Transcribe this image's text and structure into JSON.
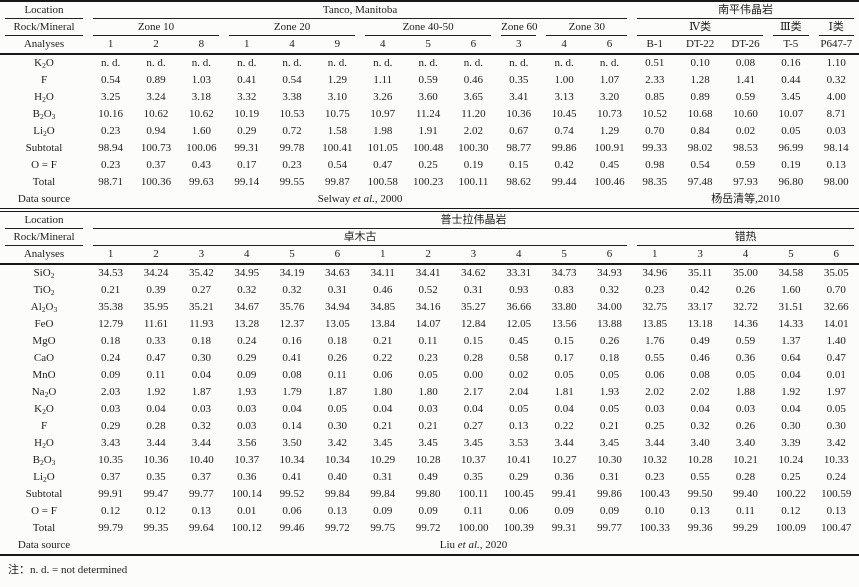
{
  "footnote": "注：n. d. = not determined",
  "tables": [
    {
      "header_labels": {
        "location": "Location",
        "rock_mineral": "Rock/Mineral",
        "analyses": "Analyses"
      },
      "locations": [
        {
          "label": "Tanco, Manitoba",
          "span": 12
        },
        {
          "label": "南平伟晶岩",
          "span": 5
        }
      ],
      "groups": [
        {
          "label": "Zone 10",
          "span": 3
        },
        {
          "label": "Zone 20",
          "span": 3
        },
        {
          "label": "Zone 40-50",
          "span": 3
        },
        {
          "label": "Zone 60",
          "span": 1
        },
        {
          "label": "Zone 30",
          "span": 2
        },
        {
          "label": "Ⅳ类",
          "span": 3
        },
        {
          "label": "Ⅲ类",
          "span": 1
        },
        {
          "label": "Ⅰ类",
          "span": 1
        }
      ],
      "analyses": [
        "1",
        "2",
        "8",
        "1",
        "4",
        "9",
        "4",
        "5",
        "6",
        "3",
        "4",
        "6",
        "B-1",
        "DT-22",
        "DT-26",
        "T-5",
        "P647-7"
      ],
      "rows": [
        {
          "label": "K2O",
          "values": [
            "n. d.",
            "n. d.",
            "n. d.",
            "n. d.",
            "n. d.",
            "n. d.",
            "n. d.",
            "n. d.",
            "n. d.",
            "n. d.",
            "n. d.",
            "n. d.",
            "0.51",
            "0.10",
            "0.08",
            "0.16",
            "1.10"
          ]
        },
        {
          "label": "F",
          "values": [
            "0.54",
            "0.89",
            "1.03",
            "0.41",
            "0.54",
            "1.29",
            "1.11",
            "0.59",
            "0.46",
            "0.35",
            "1.00",
            "1.07",
            "2.33",
            "1.28",
            "1.41",
            "0.44",
            "0.32"
          ]
        },
        {
          "label": "H2O",
          "values": [
            "3.25",
            "3.24",
            "3.18",
            "3.32",
            "3.38",
            "3.10",
            "3.26",
            "3.60",
            "3.65",
            "3.41",
            "3.13",
            "3.20",
            "0.85",
            "0.89",
            "0.59",
            "3.45",
            "4.00"
          ]
        },
        {
          "label": "B2O3",
          "values": [
            "10.16",
            "10.62",
            "10.62",
            "10.19",
            "10.53",
            "10.75",
            "10.97",
            "11.24",
            "11.20",
            "10.36",
            "10.45",
            "10.73",
            "10.52",
            "10.68",
            "10.60",
            "10.07",
            "8.71"
          ]
        },
        {
          "label": "Li2O",
          "values": [
            "0.23",
            "0.94",
            "1.60",
            "0.29",
            "0.72",
            "1.58",
            "1.98",
            "1.91",
            "2.02",
            "0.67",
            "0.74",
            "1.29",
            "0.70",
            "0.84",
            "0.02",
            "0.05",
            "0.03"
          ]
        },
        {
          "label": "Subtotal",
          "values": [
            "98.94",
            "100.73",
            "100.06",
            "99.31",
            "99.78",
            "100.41",
            "101.05",
            "100.48",
            "100.30",
            "98.77",
            "99.86",
            "100.91",
            "99.33",
            "98.02",
            "98.53",
            "96.99",
            "98.14"
          ]
        },
        {
          "label": "O = F",
          "values": [
            "0.23",
            "0.37",
            "0.43",
            "0.17",
            "0.23",
            "0.54",
            "0.47",
            "0.25",
            "0.19",
            "0.15",
            "0.42",
            "0.45",
            "0.98",
            "0.54",
            "0.59",
            "0.19",
            "0.13"
          ]
        },
        {
          "label": "Total",
          "values": [
            "98.71",
            "100.36",
            "99.63",
            "99.14",
            "99.55",
            "99.87",
            "100.58",
            "100.23",
            "100.11",
            "98.62",
            "99.44",
            "100.46",
            "98.35",
            "97.48",
            "97.93",
            "96.80",
            "98.00"
          ]
        }
      ],
      "source_label": "Data source",
      "sources": [
        {
          "span": 12,
          "pre": "Selway ",
          "italic": "et al.",
          "post": ", 2000"
        },
        {
          "span": 5,
          "pre": "杨岳清等,2010",
          "italic": "",
          "post": ""
        }
      ]
    },
    {
      "header_labels": {
        "location": "Location",
        "rock_mineral": "Rock/Mineral",
        "analyses": "Analyses"
      },
      "locations": [
        {
          "label": "普士拉伟晶岩",
          "span": 17
        }
      ],
      "groups": [
        {
          "label": "卓木古",
          "span": 12
        },
        {
          "label": "错热",
          "span": 5
        }
      ],
      "analyses": [
        "1",
        "2",
        "3",
        "4",
        "5",
        "6",
        "1",
        "2",
        "3",
        "4",
        "5",
        "6",
        "1",
        "3",
        "4",
        "5",
        "6"
      ],
      "rows": [
        {
          "label": "SiO2",
          "values": [
            "34.53",
            "34.24",
            "35.42",
            "34.95",
            "34.19",
            "34.63",
            "34.11",
            "34.41",
            "34.62",
            "33.31",
            "34.73",
            "34.93",
            "34.96",
            "35.11",
            "35.00",
            "34.58",
            "35.05"
          ]
        },
        {
          "label": "TiO2",
          "values": [
            "0.21",
            "0.39",
            "0.27",
            "0.32",
            "0.32",
            "0.31",
            "0.46",
            "0.52",
            "0.31",
            "0.93",
            "0.83",
            "0.32",
            "0.23",
            "0.42",
            "0.26",
            "1.60",
            "0.70"
          ]
        },
        {
          "label": "Al2O3",
          "values": [
            "35.38",
            "35.95",
            "35.21",
            "34.67",
            "35.76",
            "34.94",
            "34.85",
            "34.16",
            "35.27",
            "36.66",
            "33.80",
            "34.00",
            "32.75",
            "33.17",
            "32.72",
            "31.51",
            "32.66"
          ]
        },
        {
          "label": "FeO",
          "values": [
            "12.79",
            "11.61",
            "11.93",
            "13.28",
            "12.37",
            "13.05",
            "13.84",
            "14.07",
            "12.84",
            "12.05",
            "13.56",
            "13.88",
            "13.85",
            "13.18",
            "14.36",
            "14.33",
            "14.01"
          ]
        },
        {
          "label": "MgO",
          "values": [
            "0.18",
            "0.33",
            "0.18",
            "0.24",
            "0.16",
            "0.18",
            "0.21",
            "0.11",
            "0.15",
            "0.45",
            "0.15",
            "0.26",
            "1.76",
            "0.49",
            "0.59",
            "1.37",
            "1.40"
          ]
        },
        {
          "label": "CaO",
          "values": [
            "0.24",
            "0.47",
            "0.30",
            "0.29",
            "0.41",
            "0.26",
            "0.22",
            "0.23",
            "0.28",
            "0.58",
            "0.17",
            "0.18",
            "0.55",
            "0.46",
            "0.36",
            "0.64",
            "0.47"
          ]
        },
        {
          "label": "MnO",
          "values": [
            "0.09",
            "0.11",
            "0.04",
            "0.09",
            "0.08",
            "0.11",
            "0.06",
            "0.05",
            "0.00",
            "0.02",
            "0.05",
            "0.05",
            "0.06",
            "0.08",
            "0.05",
            "0.04",
            "0.01"
          ]
        },
        {
          "label": "Na2O",
          "values": [
            "2.03",
            "1.92",
            "1.87",
            "1.93",
            "1.79",
            "1.87",
            "1.80",
            "1.80",
            "2.17",
            "2.04",
            "1.81",
            "1.93",
            "2.02",
            "2.02",
            "1.88",
            "1.92",
            "1.97"
          ]
        },
        {
          "label": "K2O",
          "values": [
            "0.03",
            "0.04",
            "0.03",
            "0.03",
            "0.04",
            "0.05",
            "0.04",
            "0.03",
            "0.04",
            "0.05",
            "0.04",
            "0.05",
            "0.03",
            "0.04",
            "0.03",
            "0.04",
            "0.05"
          ]
        },
        {
          "label": "F",
          "values": [
            "0.29",
            "0.28",
            "0.32",
            "0.03",
            "0.14",
            "0.30",
            "0.21",
            "0.21",
            "0.27",
            "0.13",
            "0.22",
            "0.21",
            "0.25",
            "0.32",
            "0.26",
            "0.30",
            "0.30"
          ]
        },
        {
          "label": "H2O",
          "values": [
            "3.43",
            "3.44",
            "3.44",
            "3.56",
            "3.50",
            "3.42",
            "3.45",
            "3.45",
            "3.45",
            "3.53",
            "3.44",
            "3.45",
            "3.44",
            "3.40",
            "3.40",
            "3.39",
            "3.42"
          ]
        },
        {
          "label": "B2O3",
          "values": [
            "10.35",
            "10.36",
            "10.40",
            "10.37",
            "10.34",
            "10.34",
            "10.29",
            "10.28",
            "10.37",
            "10.41",
            "10.27",
            "10.30",
            "10.32",
            "10.28",
            "10.21",
            "10.24",
            "10.33"
          ]
        },
        {
          "label": "Li2O",
          "values": [
            "0.37",
            "0.35",
            "0.37",
            "0.36",
            "0.41",
            "0.40",
            "0.31",
            "0.49",
            "0.35",
            "0.29",
            "0.36",
            "0.31",
            "0.23",
            "0.55",
            "0.28",
            "0.25",
            "0.24"
          ]
        },
        {
          "label": "Subtotal",
          "values": [
            "99.91",
            "99.47",
            "99.77",
            "100.14",
            "99.52",
            "99.84",
            "99.84",
            "99.80",
            "100.11",
            "100.45",
            "99.41",
            "99.86",
            "100.43",
            "99.50",
            "99.40",
            "100.22",
            "100.59"
          ]
        },
        {
          "label": "O = F",
          "values": [
            "0.12",
            "0.12",
            "0.13",
            "0.01",
            "0.06",
            "0.13",
            "0.09",
            "0.09",
            "0.11",
            "0.06",
            "0.09",
            "0.09",
            "0.10",
            "0.13",
            "0.11",
            "0.12",
            "0.13"
          ]
        },
        {
          "label": "Total",
          "values": [
            "99.79",
            "99.35",
            "99.64",
            "100.12",
            "99.46",
            "99.72",
            "99.75",
            "99.72",
            "100.00",
            "100.39",
            "99.31",
            "99.77",
            "100.33",
            "99.36",
            "99.29",
            "100.09",
            "100.47"
          ]
        }
      ],
      "source_label": "Data source",
      "sources": [
        {
          "span": 17,
          "pre": "Liu ",
          "italic": "et al.",
          "post": ", 2020"
        }
      ]
    }
  ]
}
